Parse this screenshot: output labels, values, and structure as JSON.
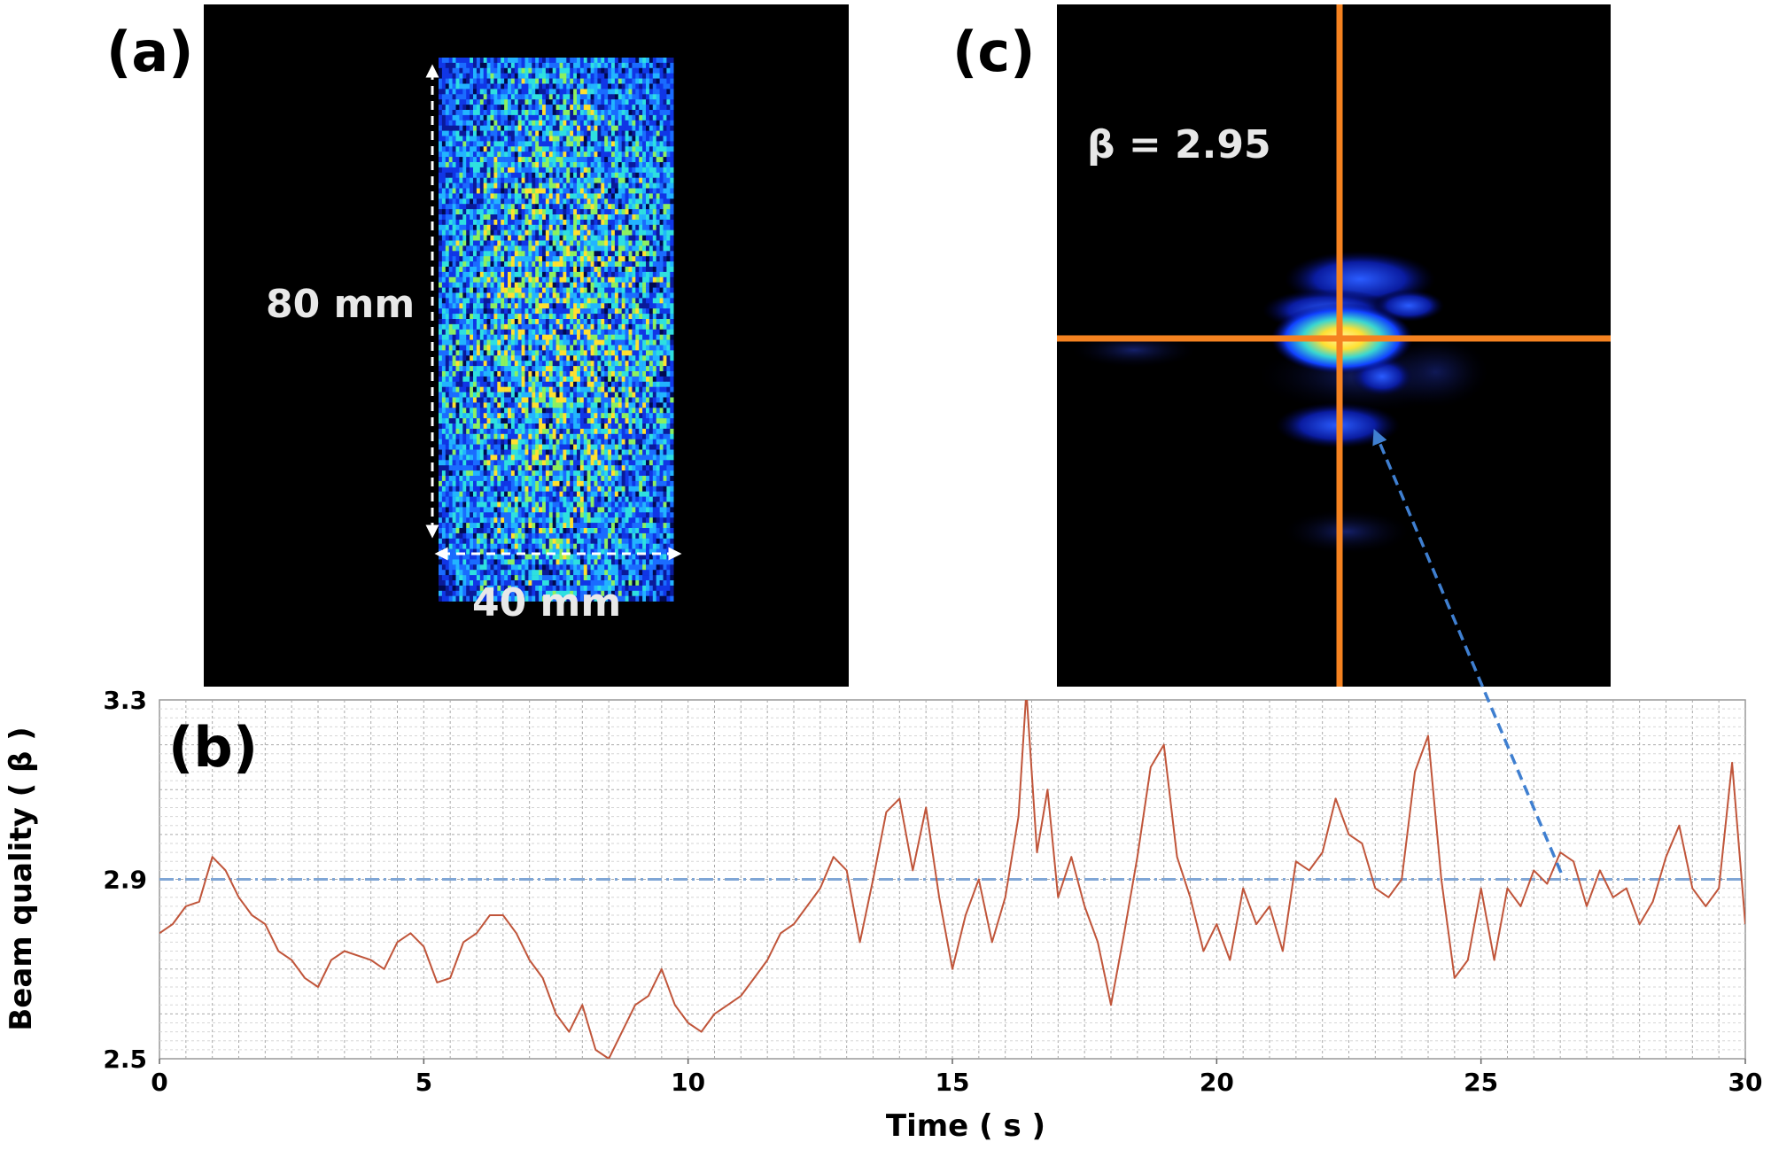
{
  "panels": {
    "a": {
      "label": "(a)",
      "height_annotation": "80 mm",
      "width_annotation": "40 mm",
      "description": "beam-intensity-map"
    },
    "b": {
      "label": "(b)"
    },
    "c": {
      "label": "(c)",
      "beta_annotation": "β = 2.95",
      "description": "far-field-spot"
    }
  },
  "colors": {
    "series_line": "#c0553a",
    "reference_line": "#7fa6d6",
    "arrow": "#3f7fd0",
    "crosshair": "#f58220",
    "grid_major": "#aaaaaa",
    "grid_minor": "#d6d6d6",
    "image_bg": "#000000"
  },
  "chart_data": {
    "type": "line",
    "title": "",
    "xlabel": "Time ( s )",
    "ylabel": "Beam quality ( β )",
    "xlim": [
      0,
      30
    ],
    "ylim": [
      2.5,
      3.3
    ],
    "xticks": [
      0,
      5,
      10,
      15,
      20,
      25,
      30
    ],
    "xtick_labels": [
      "0",
      "5",
      "10",
      "15",
      "20",
      "25",
      "30"
    ],
    "yticks": [
      2.5,
      2.9,
      3.3
    ],
    "ytick_labels": [
      "2.5",
      "2.9",
      "3.3"
    ],
    "grid": true,
    "reference_line": {
      "y": 2.9,
      "style": "dash-dot"
    },
    "series": [
      {
        "name": "Beam quality",
        "x": [
          0,
          0.25,
          0.5,
          0.75,
          1.0,
          1.25,
          1.5,
          1.75,
          2.0,
          2.25,
          2.5,
          2.75,
          3.0,
          3.25,
          3.5,
          3.75,
          4.0,
          4.25,
          4.5,
          4.75,
          5.0,
          5.25,
          5.5,
          5.75,
          6.0,
          6.25,
          6.5,
          6.75,
          7.0,
          7.25,
          7.5,
          7.75,
          8.0,
          8.25,
          8.5,
          8.75,
          9.0,
          9.25,
          9.5,
          9.75,
          10.0,
          10.25,
          10.5,
          10.75,
          11.0,
          11.25,
          11.5,
          11.75,
          12.0,
          12.25,
          12.5,
          12.75,
          13.0,
          13.25,
          13.5,
          13.75,
          14.0,
          14.25,
          14.5,
          14.75,
          15.0,
          15.25,
          15.5,
          15.75,
          16.0,
          16.25,
          16.4,
          16.6,
          16.8,
          17.0,
          17.25,
          17.5,
          17.75,
          18.0,
          18.25,
          18.5,
          18.75,
          19.0,
          19.25,
          19.5,
          19.75,
          20.0,
          20.25,
          20.5,
          20.75,
          21.0,
          21.25,
          21.5,
          21.75,
          22.0,
          22.25,
          22.5,
          22.75,
          23.0,
          23.25,
          23.5,
          23.75,
          24.0,
          24.25,
          24.5,
          24.75,
          25.0,
          25.25,
          25.5,
          25.75,
          26.0,
          26.25,
          26.5,
          26.75,
          27.0,
          27.25,
          27.5,
          27.75,
          28.0,
          28.25,
          28.5,
          28.75,
          29.0,
          29.25,
          29.5,
          29.75,
          30.0
        ],
        "values": [
          2.78,
          2.8,
          2.84,
          2.85,
          2.95,
          2.92,
          2.86,
          2.82,
          2.8,
          2.74,
          2.72,
          2.68,
          2.66,
          2.72,
          2.74,
          2.73,
          2.72,
          2.7,
          2.76,
          2.78,
          2.75,
          2.67,
          2.68,
          2.76,
          2.78,
          2.82,
          2.82,
          2.78,
          2.72,
          2.68,
          2.6,
          2.56,
          2.62,
          2.52,
          2.5,
          2.56,
          2.62,
          2.64,
          2.7,
          2.62,
          2.58,
          2.56,
          2.6,
          2.62,
          2.64,
          2.68,
          2.72,
          2.78,
          2.8,
          2.84,
          2.88,
          2.95,
          2.92,
          2.76,
          2.9,
          3.05,
          3.08,
          2.92,
          3.06,
          2.86,
          2.7,
          2.82,
          2.9,
          2.76,
          2.86,
          3.04,
          3.32,
          2.96,
          3.1,
          2.86,
          2.95,
          2.84,
          2.76,
          2.62,
          2.78,
          2.95,
          3.15,
          3.2,
          2.95,
          2.86,
          2.74,
          2.8,
          2.72,
          2.88,
          2.8,
          2.84,
          2.74,
          2.94,
          2.92,
          2.96,
          3.08,
          3.0,
          2.98,
          2.88,
          2.86,
          2.9,
          3.14,
          3.22,
          2.9,
          2.68,
          2.72,
          2.88,
          2.72,
          2.88,
          2.84,
          2.92,
          2.89,
          2.96,
          2.94,
          2.84,
          2.92,
          2.86,
          2.88,
          2.8,
          2.85,
          2.95,
          3.02,
          2.88,
          2.84,
          2.88,
          3.16,
          2.8
        ]
      }
    ]
  }
}
